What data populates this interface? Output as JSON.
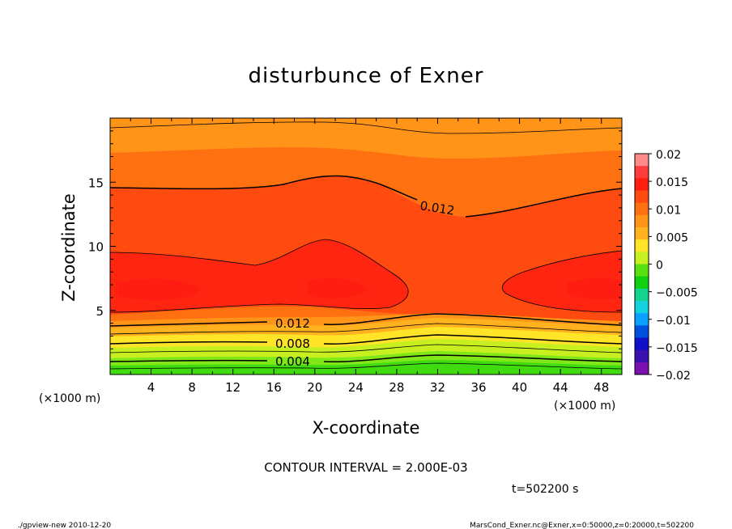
{
  "chart_data": {
    "type": "heatmap",
    "title": "disturbunce of Exner",
    "xlabel": "X-coordinate",
    "ylabel": "Z-coordinate",
    "x_unit_left": "(×1000 m)",
    "x_unit_right": "(×1000 m)",
    "xlim": [
      0,
      50
    ],
    "ylim": [
      0,
      20
    ],
    "x_ticks": [
      4,
      8,
      12,
      16,
      20,
      24,
      28,
      32,
      36,
      40,
      44,
      48
    ],
    "y_ticks": [
      5,
      10,
      15
    ],
    "colorbar": {
      "range": [
        -0.02,
        0.02
      ],
      "tick_values": [
        0.02,
        0.015,
        0.01,
        0.005,
        0,
        -0.005,
        -0.01,
        -0.015,
        -0.02
      ],
      "tick_labels": [
        "0.02",
        "0.015",
        "0.01",
        "0.005",
        "0",
        "−0.005",
        "−0.01",
        "−0.015",
        "−0.02"
      ],
      "colors_top_to_bottom": [
        "#ff8a8a",
        "#ff3b3b",
        "#ff1e10",
        "#ff4a10",
        "#ff7010",
        "#ff9418",
        "#ffb21e",
        "#ffe428",
        "#c8f020",
        "#58e010",
        "#10d010",
        "#14d290",
        "#12d2e0",
        "#0aa0ff",
        "#0050e0",
        "#1010c8",
        "#3a10b0",
        "#7a10b0"
      ]
    },
    "contour_labels": [
      {
        "value": "0.012",
        "x": 34,
        "z": 12.8
      },
      {
        "value": "0.012",
        "x": 18.5,
        "z": 4.0
      },
      {
        "value": "0.008",
        "x": 18.5,
        "z": 2.4
      },
      {
        "value": "0.004",
        "x": 18.5,
        "z": 1.0
      }
    ],
    "contour_interval": "CONTOUR INTERVAL = 2.000E-03",
    "time_label": "t=502200 s"
  },
  "footer": {
    "left": "./gpview-new   2010-12-20",
    "right": "MarsCond_Exner.nc@Exner,x=0:50000,z=0:20000,t=502200"
  }
}
